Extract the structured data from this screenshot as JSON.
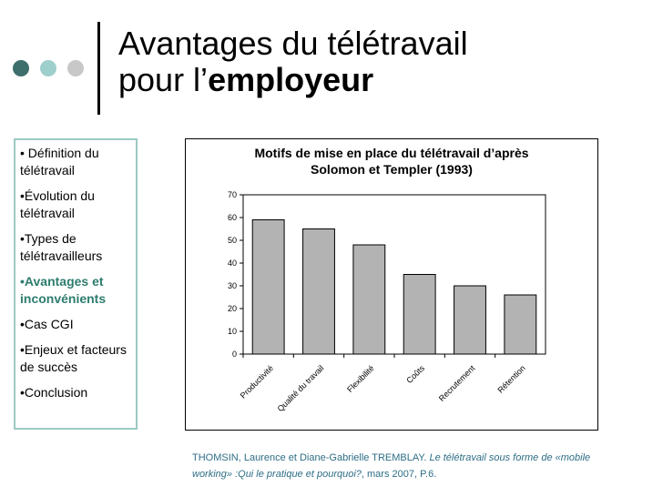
{
  "slide": {
    "title_line1": "Avantages du télétravail",
    "title_line2_prefix": "pour l’",
    "title_line2_bold": "employeur",
    "dots": [
      "#3f6f6c",
      "#9fcfcc",
      "#c8c8c8"
    ]
  },
  "nav": {
    "items": [
      {
        "label": "• Définition du télétravail",
        "active": false
      },
      {
        "label": "•Évolution du télétravail",
        "active": false
      },
      {
        "label": "•Types de télétravailleurs",
        "active": false
      },
      {
        "label": "•Avantages et inconvénients",
        "active": true
      },
      {
        "label": "•Cas CGI",
        "active": false
      },
      {
        "label": "•Enjeux et facteurs de succès",
        "active": false
      },
      {
        "label": "•Conclusion",
        "active": false
      }
    ],
    "accent_color": "#2e7d6f",
    "border_color": "#9cc9c3"
  },
  "chart_data": {
    "type": "bar",
    "title_line1": "Motifs de mise en place du télétravail d’après",
    "title_line2": "Solomon et Templer (1993)",
    "categories": [
      "Productivité",
      "Qualité du travail",
      "Flexibilité",
      "Coûts",
      "Recrutement",
      "Rétention"
    ],
    "values": [
      59,
      55,
      48,
      35,
      30,
      26
    ],
    "ylim": [
      0,
      70
    ],
    "yticks": [
      0,
      10,
      20,
      30,
      40,
      50,
      60,
      70
    ],
    "grid": false,
    "bar_color": "#b3b3b3",
    "xlabel": "",
    "ylabel": ""
  },
  "source": {
    "authors": "THOMSIN, Laurence et Diane-Gabrielle TREMBLAY. ",
    "work": "Le télétravail sous forme de «mobile working» :Qui le pratique et pourquoi?",
    "rest": ", mars 2007, P.6."
  }
}
